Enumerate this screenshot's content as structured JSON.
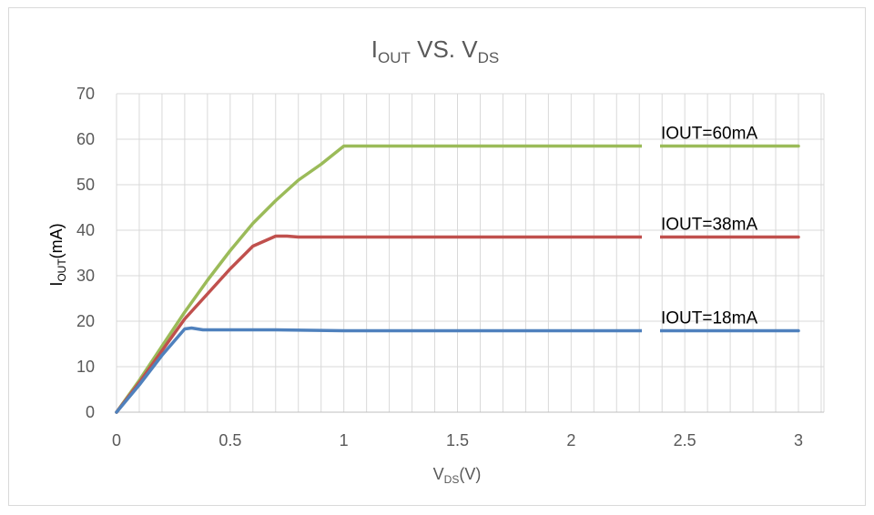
{
  "chart_data": {
    "type": "line",
    "title": {
      "main": "I",
      "sub1": "OUT",
      "mid": " VS. V",
      "sub2": "DS"
    },
    "xlabel": {
      "main": "V",
      "sub": "DS",
      "suffix": "(V)"
    },
    "ylabel": {
      "main": "I",
      "sub": "OUT",
      "suffix": "(mA)"
    },
    "xlim": [
      0,
      3
    ],
    "ylim": [
      0,
      70
    ],
    "xticks": [
      0,
      0.5,
      1,
      1.5,
      2,
      2.5,
      3
    ],
    "xtick_labels": [
      "0",
      "0.5",
      "1",
      "1.5",
      "2",
      "2.5",
      "3"
    ],
    "yticks": [
      0,
      10,
      20,
      30,
      40,
      50,
      60,
      70
    ],
    "ytick_labels": [
      "0",
      "10",
      "20",
      "30",
      "40",
      "50",
      "60",
      "70"
    ],
    "grid": true,
    "series": [
      {
        "label": "IOUT=60mA",
        "color": "#9bbb59",
        "points": [
          [
            0,
            0
          ],
          [
            0.1,
            7
          ],
          [
            0.2,
            14.5
          ],
          [
            0.3,
            22
          ],
          [
            0.4,
            29
          ],
          [
            0.5,
            35.5
          ],
          [
            0.6,
            41.5
          ],
          [
            0.7,
            46.5
          ],
          [
            0.8,
            51
          ],
          [
            0.9,
            54.5
          ],
          [
            1.0,
            58.5
          ],
          [
            1.05,
            58.5
          ],
          [
            1.5,
            58.5
          ],
          [
            2.0,
            58.5
          ],
          [
            2.5,
            58.5
          ],
          [
            3.0,
            58.5
          ]
        ]
      },
      {
        "label": "IOUT=38mA",
        "color": "#c0504d",
        "points": [
          [
            0,
            0
          ],
          [
            0.1,
            6.5
          ],
          [
            0.2,
            13.5
          ],
          [
            0.3,
            20.5
          ],
          [
            0.4,
            26
          ],
          [
            0.5,
            31.5
          ],
          [
            0.6,
            36.5
          ],
          [
            0.7,
            38.7
          ],
          [
            0.75,
            38.7
          ],
          [
            0.8,
            38.5
          ],
          [
            1.0,
            38.5
          ],
          [
            1.5,
            38.5
          ],
          [
            2.0,
            38.5
          ],
          [
            2.5,
            38.5
          ],
          [
            3.0,
            38.5
          ]
        ]
      },
      {
        "label": "IOUT=18mA",
        "color": "#4f81bd",
        "points": [
          [
            0,
            0
          ],
          [
            0.1,
            6
          ],
          [
            0.2,
            12.5
          ],
          [
            0.3,
            18.3
          ],
          [
            0.33,
            18.5
          ],
          [
            0.38,
            18.1
          ],
          [
            0.5,
            18.1
          ],
          [
            0.7,
            18.1
          ],
          [
            1.0,
            17.9
          ],
          [
            1.5,
            17.9
          ],
          [
            2.0,
            17.9
          ],
          [
            2.5,
            17.9
          ],
          [
            3.0,
            17.9
          ]
        ]
      }
    ]
  }
}
